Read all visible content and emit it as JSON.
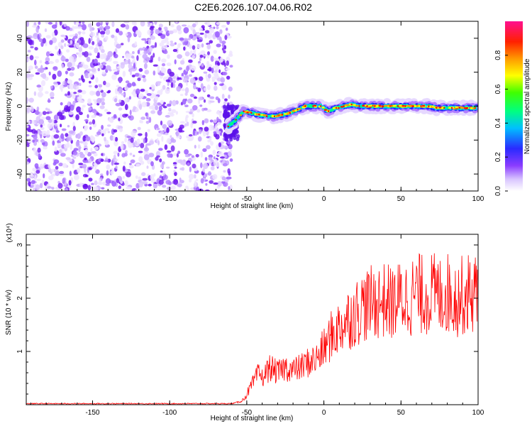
{
  "title": "C2E6.2026.107.04.06.R02",
  "chart_data": [
    {
      "type": "heatmap",
      "xlabel": "Height of straight line (km)",
      "ylabel": "Frequency (Hz)",
      "xlim": [
        -193,
        100
      ],
      "ylim": [
        -50,
        50
      ],
      "xticks": [
        -150,
        -100,
        -50,
        0,
        50,
        100
      ],
      "yticks": [
        -40,
        -20,
        0,
        20,
        40
      ],
      "colorbar": {
        "label": "Normalized spectral amplitude",
        "range": [
          0,
          1
        ],
        "ticks": [
          0.0,
          0.2,
          0.4,
          0.6,
          0.8
        ],
        "colormap": [
          "#ffffff",
          "#c9a8ff",
          "#7b2cf0",
          "#2a2aff",
          "#00bfff",
          "#00ff40",
          "#ffff00",
          "#ff8000",
          "#ff0000",
          "#ff0080"
        ]
      },
      "noise_region_x": [
        -193,
        -60
      ],
      "signal_trace": {
        "x": [
          -62,
          -57,
          -52,
          -47,
          -42,
          -37,
          -32,
          -27,
          -22,
          -17,
          -12,
          -7,
          -2,
          3,
          8,
          13,
          18,
          23,
          28,
          33,
          38,
          43,
          48,
          53,
          58,
          63,
          68,
          73,
          78,
          83,
          88,
          93,
          98
        ],
        "y": [
          -12,
          -8,
          -3,
          -4,
          -5,
          -6,
          -6,
          -5,
          -4,
          -2,
          0,
          0,
          0,
          -3,
          -1,
          0,
          1,
          0,
          0,
          0,
          0,
          0,
          0,
          0,
          0,
          0,
          0,
          -1,
          -1,
          -1,
          -1,
          -1,
          -1
        ]
      }
    },
    {
      "type": "line",
      "xlabel": "Height of straight line (km)",
      "ylabel": "SNR (10 * v/v)",
      "y_multiplier": "(x10⁴)",
      "xlim": [
        -193,
        100
      ],
      "ylim": [
        0,
        3.2
      ],
      "xticks": [
        -150,
        -100,
        -50,
        0,
        50,
        100
      ],
      "yticks": [
        1,
        2,
        3
      ],
      "color": "#ff0000",
      "series": [
        {
          "x": [
            -193,
            -60,
            -55,
            -52,
            -50,
            -48,
            -45,
            -42,
            -40,
            -35,
            -30,
            -25,
            -20,
            -15,
            -10,
            -5,
            0,
            5,
            10,
            15,
            20,
            25,
            30,
            35,
            40,
            45,
            50,
            55,
            60,
            65,
            70,
            75,
            80,
            85,
            90,
            95,
            100
          ],
          "y": [
            0.02,
            0.02,
            0.05,
            0.1,
            0.2,
            0.3,
            0.45,
            0.6,
            0.5,
            0.7,
            0.6,
            0.7,
            0.65,
            0.7,
            0.8,
            0.85,
            1.05,
            1.3,
            1.45,
            1.6,
            1.7,
            1.85,
            1.9,
            1.95,
            1.95,
            1.9,
            2.0,
            2.0,
            2.1,
            2.05,
            2.1,
            2.05,
            2.1,
            2.0,
            2.05,
            2.1,
            2.1
          ]
        }
      ]
    }
  ]
}
